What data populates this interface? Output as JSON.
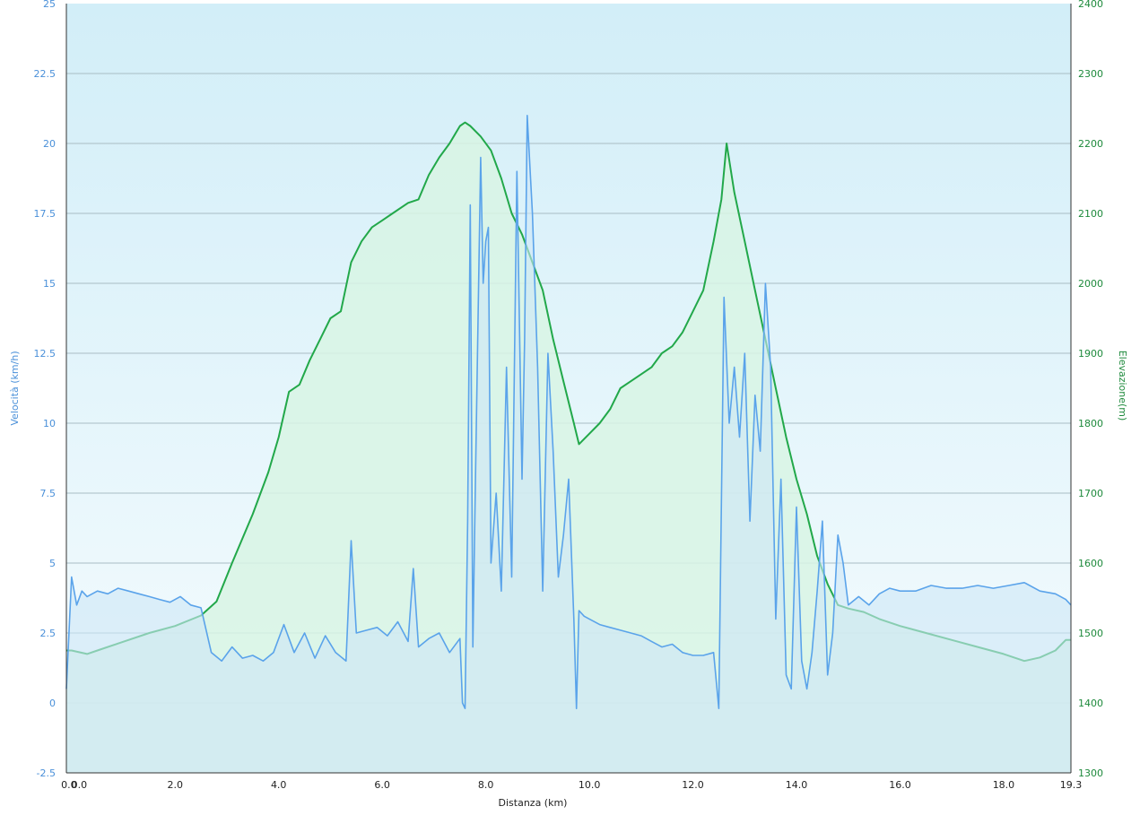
{
  "chart_data": {
    "type": "area",
    "xlabel": "Distanza  (km)",
    "xlim": [
      -0.1,
      19.3
    ],
    "x_ticks": [
      "0.0",
      "0.0",
      "2.0",
      "4.0",
      "6.0",
      "8.0",
      "10.0",
      "12.0",
      "14.0",
      "16.0",
      "18.0",
      "19.3"
    ],
    "x_tick_values": [
      -0.05,
      0.15,
      2.0,
      4.0,
      6.0,
      8.0,
      10.0,
      12.0,
      14.0,
      16.0,
      18.0,
      19.3
    ],
    "grid": true,
    "left_axis": {
      "label": "Velocità (km/h)",
      "ylim": [
        -2.5,
        25
      ],
      "ticks": [
        "-2.5",
        "0",
        "2.5",
        "5",
        "7.5",
        "10",
        "12.5",
        "15",
        "17.5",
        "20",
        "22.5",
        "25"
      ],
      "color": "#4a90d9"
    },
    "right_axis": {
      "label": "Elevazione(m)",
      "ylim": [
        1300,
        2400
      ],
      "ticks": [
        "1300",
        "1400",
        "1500",
        "1600",
        "1700",
        "1800",
        "1900",
        "2000",
        "2100",
        "2200",
        "2300",
        "2400"
      ],
      "color": "#1e8a3c"
    },
    "series": [
      {
        "axis": "right",
        "color": "#22a84a",
        "fill": "#d8f5e4",
        "x": [
          -0.1,
          0.0,
          0.3,
          0.5,
          0.9,
          1.5,
          2.0,
          2.5,
          2.8,
          3.1,
          3.5,
          3.8,
          4.0,
          4.2,
          4.4,
          4.6,
          4.8,
          5.0,
          5.2,
          5.4,
          5.6,
          5.8,
          6.0,
          6.2,
          6.5,
          6.7,
          6.9,
          7.1,
          7.3,
          7.5,
          7.6,
          7.7,
          7.9,
          8.1,
          8.3,
          8.5,
          8.7,
          8.9,
          9.1,
          9.3,
          9.5,
          9.7,
          9.8,
          10.0,
          10.2,
          10.4,
          10.6,
          10.8,
          11.0,
          11.2,
          11.4,
          11.6,
          11.8,
          12.0,
          12.2,
          12.4,
          12.55,
          12.65,
          12.8,
          13.0,
          13.2,
          13.4,
          13.6,
          13.8,
          14.0,
          14.2,
          14.4,
          14.6,
          14.8,
          15.0,
          15.3,
          15.6,
          16.0,
          16.5,
          17.0,
          17.5,
          18.0,
          18.4,
          18.7,
          19.0,
          19.2,
          19.3
        ],
        "y": [
          1475,
          1475,
          1470,
          1475,
          1485,
          1500,
          1510,
          1525,
          1545,
          1600,
          1670,
          1730,
          1780,
          1845,
          1855,
          1890,
          1920,
          1950,
          1960,
          2030,
          2060,
          2080,
          2090,
          2100,
          2115,
          2120,
          2155,
          2180,
          2200,
          2225,
          2230,
          2225,
          2210,
          2190,
          2150,
          2100,
          2070,
          2030,
          1990,
          1920,
          1860,
          1800,
          1770,
          1785,
          1800,
          1820,
          1850,
          1860,
          1870,
          1880,
          1900,
          1910,
          1930,
          1960,
          1990,
          2060,
          2120,
          2200,
          2130,
          2060,
          1990,
          1920,
          1850,
          1780,
          1720,
          1670,
          1610,
          1570,
          1540,
          1535,
          1530,
          1520,
          1510,
          1500,
          1490,
          1480,
          1470,
          1460,
          1465,
          1475,
          1490,
          1490
        ]
      },
      {
        "axis": "left",
        "color": "#5aa3ea",
        "fill": "#cde6f7",
        "x": [
          -0.1,
          0.0,
          0.1,
          0.2,
          0.3,
          0.5,
          0.7,
          0.9,
          1.1,
          1.3,
          1.5,
          1.7,
          1.9,
          2.1,
          2.3,
          2.5,
          2.7,
          2.9,
          3.1,
          3.3,
          3.5,
          3.7,
          3.9,
          4.1,
          4.3,
          4.5,
          4.7,
          4.9,
          5.1,
          5.3,
          5.4,
          5.5,
          5.7,
          5.9,
          6.1,
          6.3,
          6.5,
          6.6,
          6.7,
          6.9,
          7.1,
          7.3,
          7.5,
          7.55,
          7.6,
          7.65,
          7.7,
          7.75,
          7.8,
          7.9,
          7.95,
          8.0,
          8.05,
          8.1,
          8.2,
          8.3,
          8.4,
          8.5,
          8.6,
          8.7,
          8.75,
          8.8,
          8.9,
          9.0,
          9.1,
          9.2,
          9.3,
          9.4,
          9.5,
          9.6,
          9.7,
          9.75,
          9.8,
          9.9,
          10.0,
          10.2,
          10.4,
          10.6,
          10.8,
          11.0,
          11.2,
          11.4,
          11.6,
          11.8,
          12.0,
          12.2,
          12.4,
          12.5,
          12.6,
          12.7,
          12.8,
          12.9,
          13.0,
          13.1,
          13.2,
          13.3,
          13.4,
          13.5,
          13.6,
          13.7,
          13.8,
          13.9,
          14.0,
          14.1,
          14.2,
          14.3,
          14.4,
          14.5,
          14.6,
          14.7,
          14.8,
          14.9,
          15.0,
          15.2,
          15.4,
          15.6,
          15.8,
          16.0,
          16.3,
          16.6,
          16.9,
          17.2,
          17.5,
          17.8,
          18.1,
          18.4,
          18.7,
          19.0,
          19.2,
          19.3
        ],
        "y": [
          0.5,
          4.5,
          3.5,
          4.0,
          3.8,
          4.0,
          3.9,
          4.1,
          4.0,
          3.9,
          3.8,
          3.7,
          3.6,
          3.8,
          3.5,
          3.4,
          1.8,
          1.5,
          2.0,
          1.6,
          1.7,
          1.5,
          1.8,
          2.8,
          1.8,
          2.5,
          1.6,
          2.4,
          1.8,
          1.5,
          5.8,
          2.5,
          2.6,
          2.7,
          2.4,
          2.9,
          2.2,
          4.8,
          2.0,
          2.3,
          2.5,
          1.8,
          2.3,
          0.0,
          -0.2,
          6.5,
          17.8,
          2.0,
          8.0,
          19.5,
          15.0,
          16.5,
          17.0,
          5.0,
          7.5,
          4.0,
          12.0,
          4.5,
          19.0,
          8.0,
          13.0,
          21.0,
          17.5,
          12.0,
          4.0,
          12.5,
          9.0,
          4.5,
          6.0,
          8.0,
          3.0,
          -0.2,
          3.3,
          3.1,
          3.0,
          2.8,
          2.7,
          2.6,
          2.5,
          2.4,
          2.2,
          2.0,
          2.1,
          1.8,
          1.7,
          1.7,
          1.8,
          -0.2,
          14.5,
          10.0,
          12.0,
          9.5,
          12.5,
          6.5,
          11.0,
          9.0,
          15.0,
          12.0,
          3.0,
          8.0,
          1.0,
          0.5,
          7.0,
          1.5,
          0.5,
          1.8,
          4.0,
          6.5,
          1.0,
          2.5,
          6.0,
          5.0,
          3.5,
          3.8,
          3.5,
          3.9,
          4.1,
          4.0,
          4.0,
          4.2,
          4.1,
          4.1,
          4.2,
          4.1,
          4.2,
          4.3,
          4.0,
          3.9,
          3.7,
          3.5
        ]
      }
    ]
  }
}
